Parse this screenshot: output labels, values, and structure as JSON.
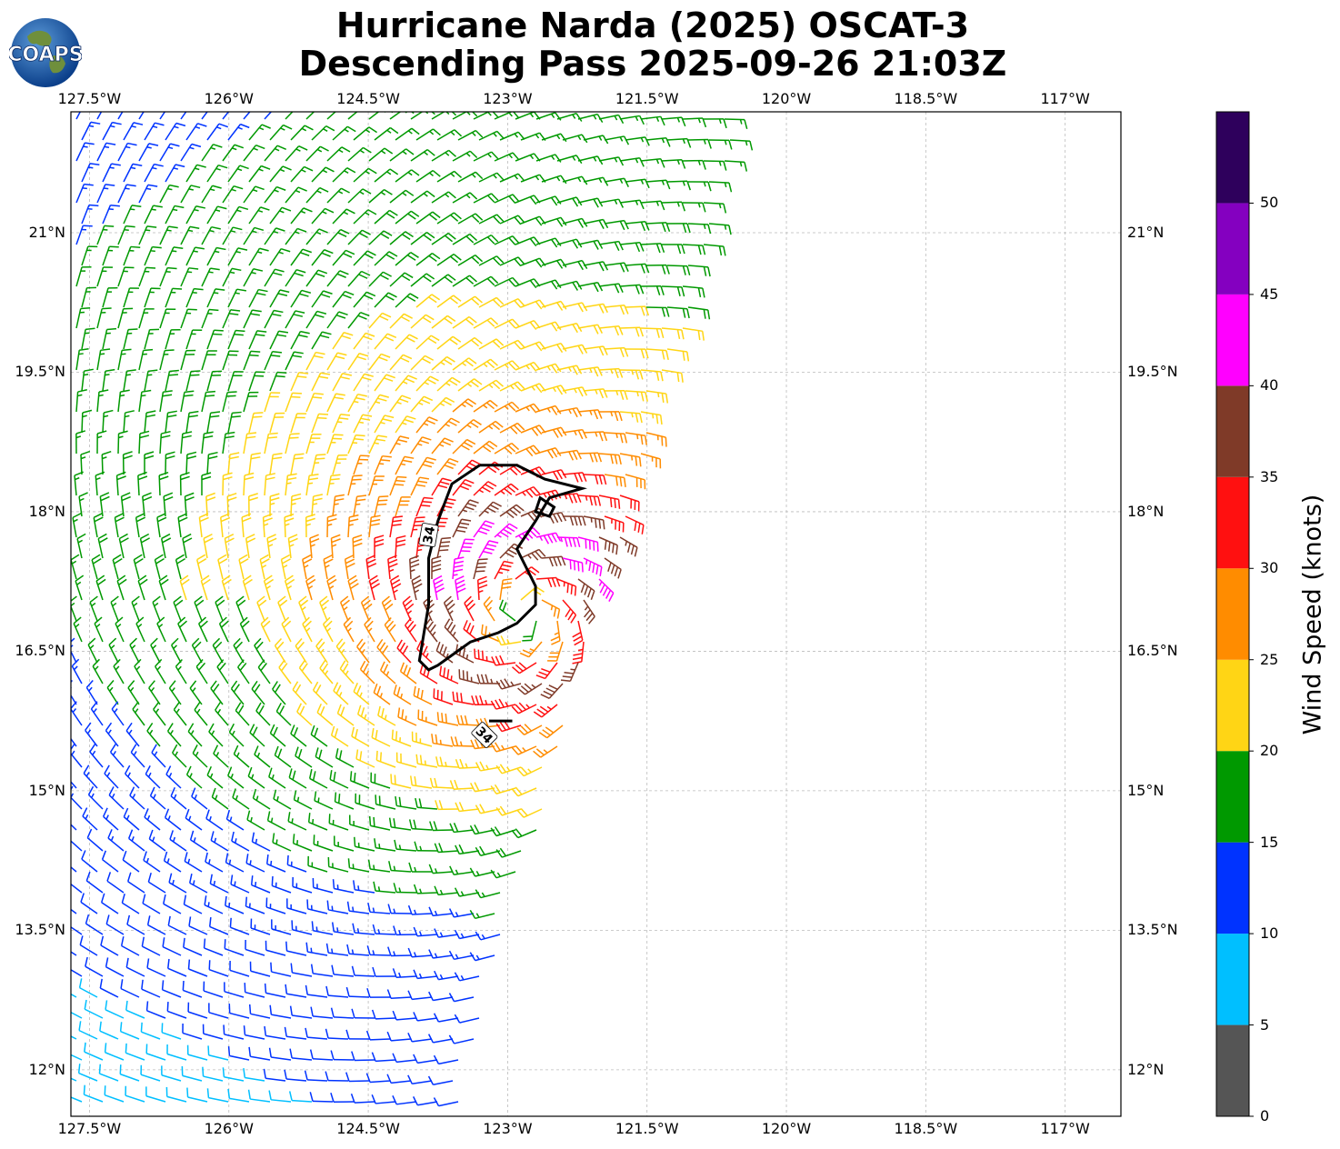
{
  "title": {
    "line1": "Hurricane Narda (2025) OSCAT-3",
    "line2": "Descending Pass 2025-09-26 21:03Z"
  },
  "logo": {
    "text": "COAPS"
  },
  "map": {
    "lon_range": [
      -127.7,
      -116.4
    ],
    "lat_range": [
      11.5,
      22.3
    ],
    "lon_ticks": [
      "127.5°W",
      "126°W",
      "124.5°W",
      "123°W",
      "121.5°W",
      "120°W",
      "118.5°W",
      "117°W"
    ],
    "lon_tick_values": [
      -127.5,
      -126,
      -124.5,
      -123,
      -121.5,
      -120,
      -118.5,
      -117
    ],
    "lat_ticks": [
      "21°N",
      "19.5°N",
      "18°N",
      "16.5°N",
      "15°N",
      "13.5°N",
      "12°N"
    ],
    "lat_tick_values": [
      21,
      19.5,
      18,
      16.5,
      15,
      13.5,
      12
    ],
    "gridlines": "dashed",
    "storm_center": {
      "lon": -122.8,
      "lat": 16.9
    },
    "contour": {
      "label": "34",
      "color": "#000000"
    }
  },
  "colorbar": {
    "label": "Wind Speed (knots)",
    "bins": [
      {
        "from": 0,
        "to": 5,
        "color": "#555555"
      },
      {
        "from": 5,
        "to": 10,
        "color": "#00bfff"
      },
      {
        "from": 10,
        "to": 15,
        "color": "#0033ff"
      },
      {
        "from": 15,
        "to": 20,
        "color": "#009900"
      },
      {
        "from": 20,
        "to": 25,
        "color": "#ffd515"
      },
      {
        "from": 25,
        "to": 30,
        "color": "#ff8c00"
      },
      {
        "from": 30,
        "to": 35,
        "color": "#ff1010"
      },
      {
        "from": 35,
        "to": 40,
        "color": "#7f3a28"
      },
      {
        "from": 40,
        "to": 45,
        "color": "#ff00ff"
      },
      {
        "from": 45,
        "to": 50,
        "color": "#8400c0"
      },
      {
        "from": 50,
        "to": 55,
        "color": "#2e005c"
      }
    ],
    "tick_labels": [
      "0",
      "5",
      "10",
      "15",
      "20",
      "25",
      "30",
      "35",
      "40",
      "45",
      "50"
    ]
  }
}
